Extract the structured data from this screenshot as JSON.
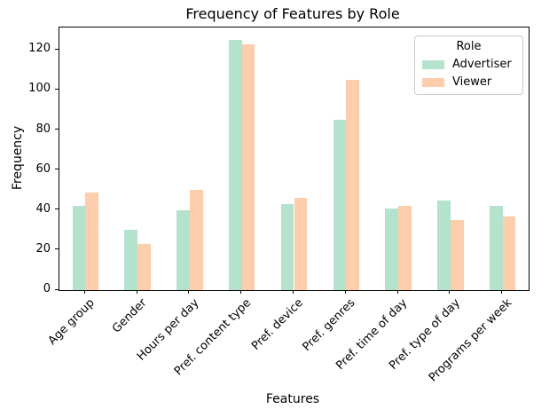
{
  "chart_data": {
    "type": "bar",
    "title": "Frequency of Features by Role",
    "xlabel": "Features",
    "ylabel": "Frequency",
    "legend_title": "Role",
    "legend_position": "upper right",
    "grid": false,
    "categories": [
      "Age group",
      "Gender",
      "Hours per day",
      "Pref. content type",
      "Pref. device",
      "Pref. genres",
      "Pref. time of day",
      "Pref. type of day",
      "Programs per week"
    ],
    "series": [
      {
        "name": "Advertiser",
        "color": "#b3e2cd",
        "values": [
          42,
          30,
          40,
          125,
          43,
          85,
          41,
          45,
          42
        ]
      },
      {
        "name": "Viewer",
        "color": "#fdcdac",
        "values": [
          49,
          23,
          50,
          123,
          46,
          105,
          42,
          35,
          37
        ]
      }
    ],
    "yticks": [
      0,
      20,
      40,
      60,
      80,
      100,
      120
    ],
    "ylim": [
      0,
      131.25
    ]
  }
}
